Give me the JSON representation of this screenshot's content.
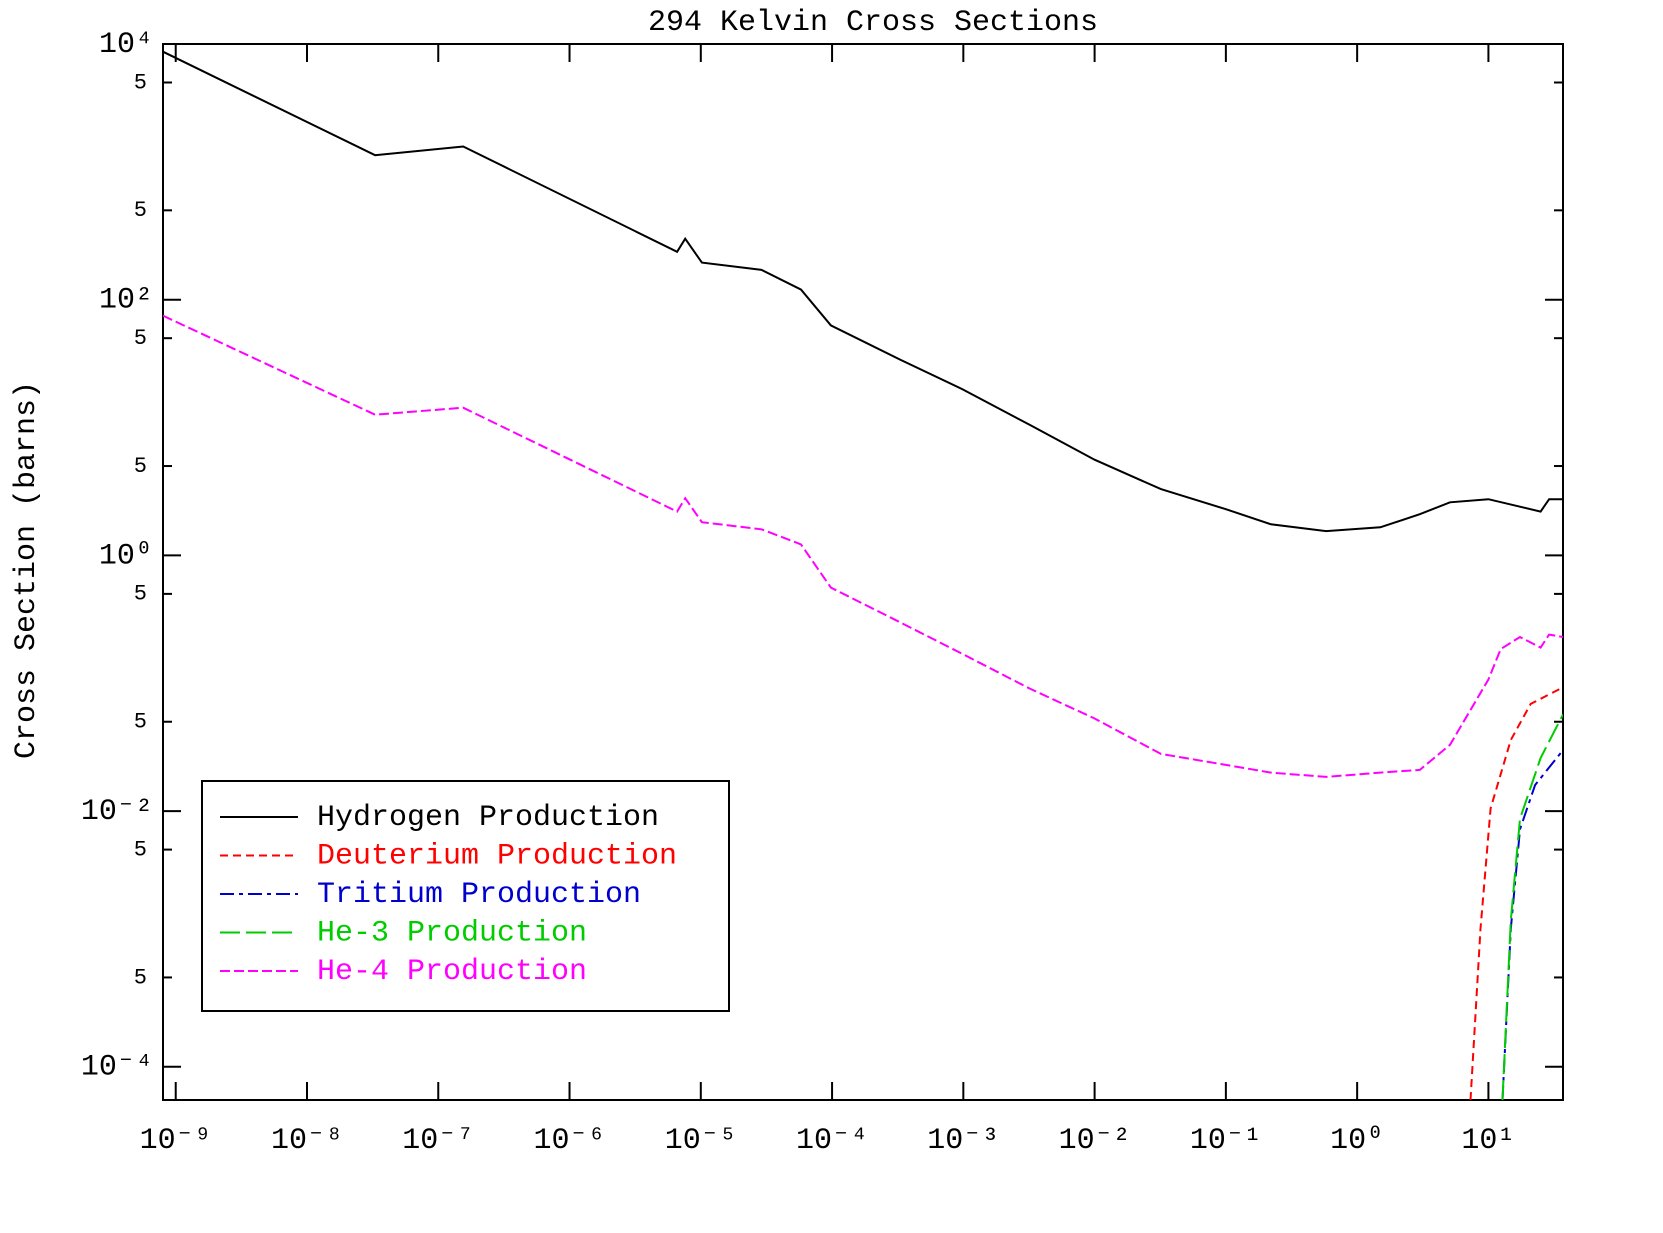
{
  "chart_data": {
    "type": "line",
    "title": "294 Kelvin Cross Sections",
    "ylabel": "Cross Section (barns)",
    "xlog": true,
    "ylog": true,
    "xlim": [
      8e-10,
      37
    ],
    "ylim": [
      5.5e-05,
      10000
    ],
    "xticks": [
      {
        "value": 1e-09,
        "label": "10⁻⁹"
      },
      {
        "value": 1e-08,
        "label": "10⁻⁸"
      },
      {
        "value": 1e-07,
        "label": "10⁻⁷"
      },
      {
        "value": 1e-06,
        "label": "10⁻⁶"
      },
      {
        "value": 1e-05,
        "label": "10⁻⁵"
      },
      {
        "value": 0.0001,
        "label": "10⁻⁴"
      },
      {
        "value": 0.001,
        "label": "10⁻³"
      },
      {
        "value": 0.01,
        "label": "10⁻²"
      },
      {
        "value": 0.1,
        "label": "10⁻¹"
      },
      {
        "value": 1,
        "label": "10⁰"
      },
      {
        "value": 10,
        "label": "10¹"
      }
    ],
    "yticks": [
      {
        "value": 0.0001,
        "label": "10⁻⁴"
      },
      {
        "value": 0.0005,
        "label": "5"
      },
      {
        "value": 0.005,
        "label": "5"
      },
      {
        "value": 0.01,
        "label": "10⁻²"
      },
      {
        "value": 0.05,
        "label": "5"
      },
      {
        "value": 0.5,
        "label": "5"
      },
      {
        "value": 1,
        "label": "10⁰"
      },
      {
        "value": 5,
        "label": "5"
      },
      {
        "value": 50,
        "label": "5"
      },
      {
        "value": 100,
        "label": "10²"
      },
      {
        "value": 500,
        "label": "5"
      },
      {
        "value": 5000,
        "label": "5"
      },
      {
        "value": 10000,
        "label": "10⁴"
      }
    ],
    "legend": "lower-left",
    "series": [
      {
        "name": "Hydrogen Production",
        "color": "#000000",
        "dash": "solid",
        "x": [
          8e-10,
          3.3e-08,
          1.55e-07,
          6.6e-06,
          7.6e-06,
          1.02e-05,
          2.9e-05,
          5.8e-05,
          9.8e-05,
          0.00033,
          0.00098,
          0.0032,
          0.01,
          0.032,
          0.1,
          0.22,
          0.58,
          1.5,
          3.0,
          5.1,
          10,
          25,
          29,
          37
        ],
        "values": [
          8700,
          1350,
          1580,
          237,
          300,
          195,
          171,
          120,
          63,
          34,
          20,
          10.5,
          5.6,
          3.3,
          2.3,
          1.75,
          1.55,
          1.66,
          2.1,
          2.6,
          2.75,
          2.2,
          2.75,
          2.75
        ]
      },
      {
        "name": "Deuterium Production",
        "color": "#ff0000",
        "dash": "dashed",
        "x": [
          7.3,
          8.7,
          10.4,
          14.8,
          21,
          37
        ],
        "values": [
          5.5e-05,
          0.0012,
          0.0105,
          0.036,
          0.069,
          0.093
        ]
      },
      {
        "name": "Tritium Production",
        "color": "#0000cc",
        "dash": "dash-dot",
        "x": [
          12.8,
          14.8,
          17.4,
          22.7,
          37
        ],
        "values": [
          5.5e-05,
          0.0012,
          0.0072,
          0.016,
          0.03
        ]
      },
      {
        "name": "He-3 Production",
        "color": "#00cc00",
        "dash": "long-dash",
        "x": [
          12.8,
          14.8,
          17.4,
          25,
          37
        ],
        "values": [
          5.5e-05,
          0.0014,
          0.0087,
          0.026,
          0.057
        ]
      },
      {
        "name": "He-4 Production",
        "color": "#ff00ff",
        "dash": "short-dash",
        "x": [
          8e-10,
          3.3e-08,
          1.55e-07,
          6.6e-06,
          7.6e-06,
          1.02e-05,
          2.9e-05,
          5.8e-05,
          9.8e-05,
          0.00033,
          0.00098,
          0.0032,
          0.01,
          0.032,
          0.1,
          0.22,
          0.58,
          1.5,
          3.0,
          5.1,
          10,
          12.4,
          17.4,
          25,
          29,
          37
        ],
        "values": [
          75,
          12.6,
          14.3,
          2.2,
          2.8,
          1.82,
          1.6,
          1.22,
          0.56,
          0.3,
          0.17,
          0.091,
          0.053,
          0.028,
          0.023,
          0.02,
          0.0185,
          0.02,
          0.021,
          0.033,
          0.107,
          0.185,
          0.23,
          0.19,
          0.24,
          0.23
        ]
      }
    ]
  }
}
